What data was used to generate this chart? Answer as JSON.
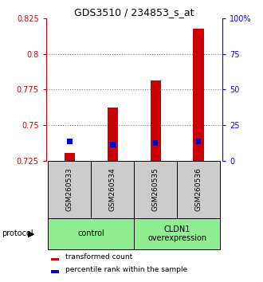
{
  "title": "GDS3510 / 234853_s_at",
  "samples": [
    "GSM260533",
    "GSM260534",
    "GSM260535",
    "GSM260536"
  ],
  "red_values": [
    0.7305,
    0.7625,
    0.7815,
    0.818
  ],
  "blue_values": [
    0.7385,
    0.7365,
    0.7375,
    0.7385
  ],
  "red_base": 0.725,
  "ylim_left": [
    0.725,
    0.825
  ],
  "ylim_right": [
    0,
    100
  ],
  "yticks_left": [
    0.725,
    0.75,
    0.775,
    0.8,
    0.825
  ],
  "yticks_right": [
    0,
    25,
    50,
    75,
    100
  ],
  "ytick_labels_left": [
    "0.725",
    "0.75",
    "0.775",
    "0.8",
    "0.825"
  ],
  "ytick_labels_right": [
    "0",
    "25",
    "50",
    "75",
    "100%"
  ],
  "groups": [
    {
      "label": "control",
      "indices": [
        0,
        1
      ],
      "color": "#90EE90"
    },
    {
      "label": "CLDN1\noverexpression",
      "indices": [
        2,
        3
      ],
      "color": "#90EE90"
    }
  ],
  "protocol_label": "protocol",
  "legend_red": "transformed count",
  "legend_blue": "percentile rank within the sample",
  "bar_color_red": "#cc0000",
  "bar_color_blue": "#0000cc",
  "red_bar_width": 0.25,
  "blue_bar_width": 0.12,
  "blue_bar_height": 0.004,
  "sample_box_color": "#cccccc",
  "group_box_color": "#90ee90"
}
